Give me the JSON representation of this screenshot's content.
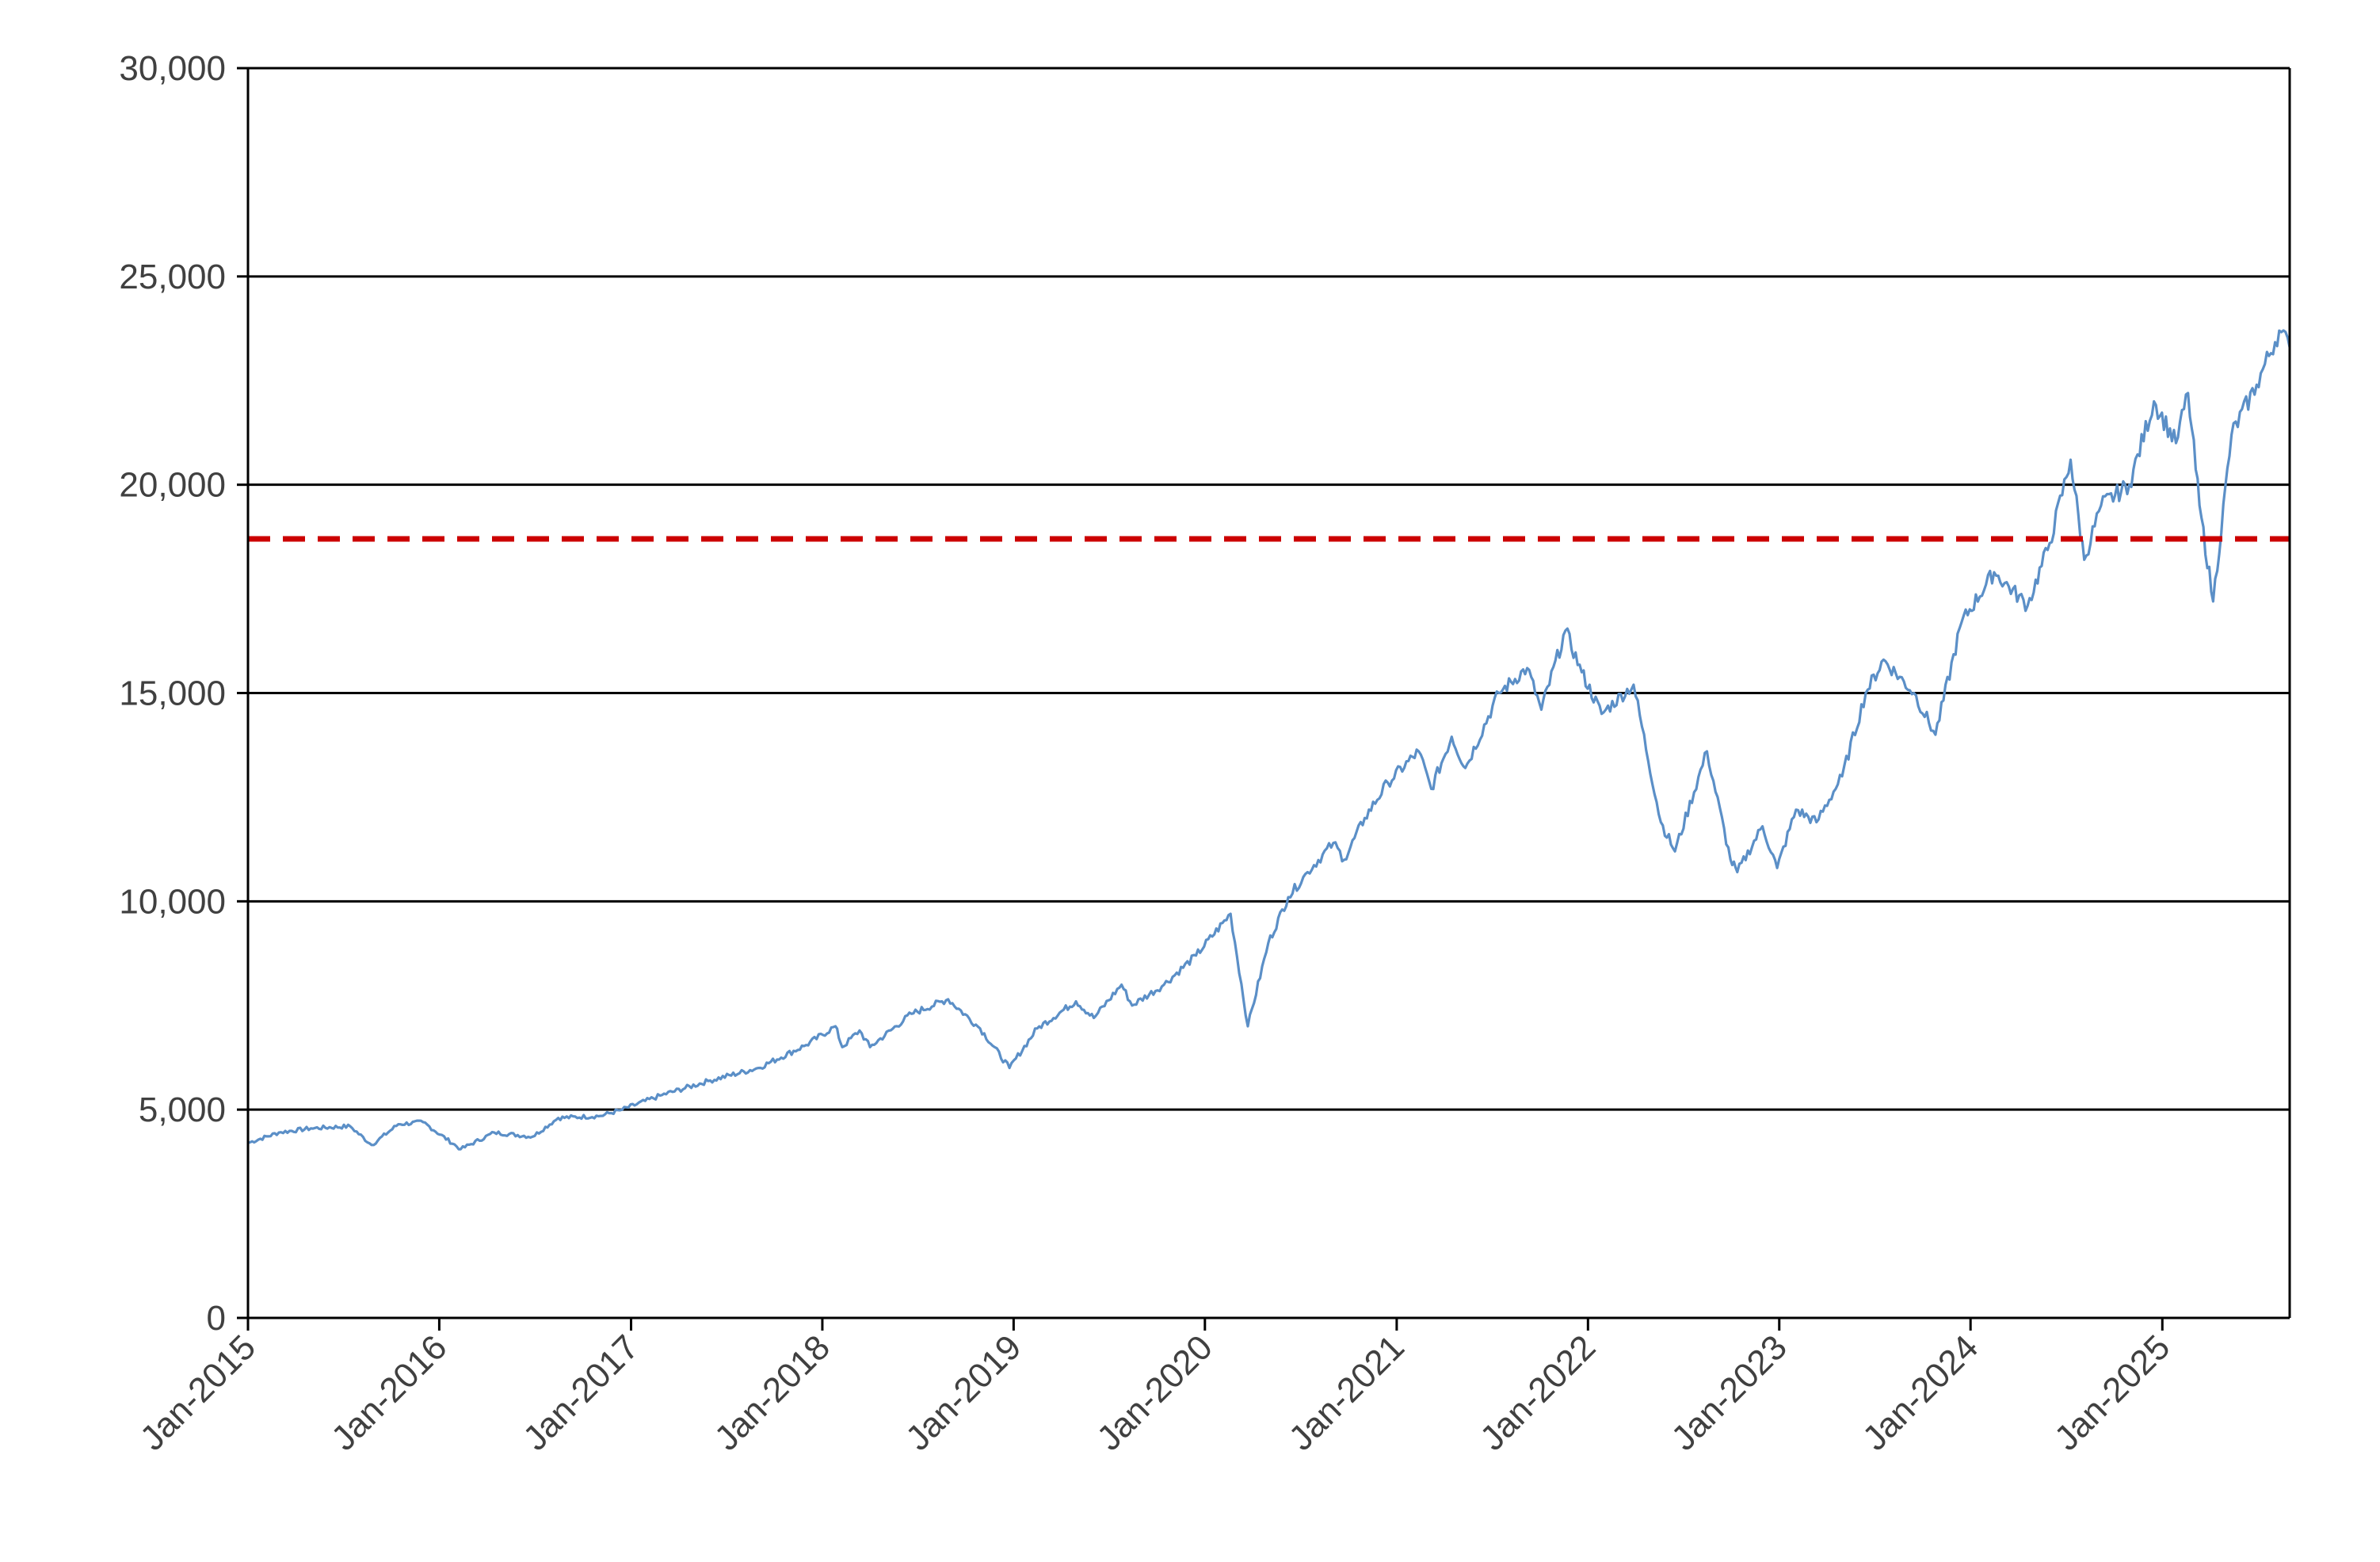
{
  "chart_data": {
    "type": "line",
    "title": "",
    "xlabel": "",
    "ylabel": "",
    "xlim": [
      "2015-01-01",
      "2025-09-01"
    ],
    "ylim": [
      0,
      30000
    ],
    "x_ticks": [
      "Jan-2015",
      "Jan-2016",
      "Jan-2017",
      "Jan-2018",
      "Jan-2019",
      "Jan-2020",
      "Jan-2021",
      "Jan-2022",
      "Jan-2023",
      "Jan-2024",
      "Jan-2025"
    ],
    "x_tick_dates": [
      "2015-01-01",
      "2016-01-01",
      "2017-01-01",
      "2018-01-01",
      "2019-01-01",
      "2020-01-01",
      "2021-01-01",
      "2022-01-01",
      "2023-01-01",
      "2024-01-01",
      "2025-01-01"
    ],
    "y_ticks": [
      0,
      5000,
      10000,
      15000,
      20000,
      25000,
      30000
    ],
    "y_tick_labels": [
      "0",
      "5,000",
      "10,000",
      "15,000",
      "20,000",
      "25,000",
      "30,000"
    ],
    "grid": "horizontal",
    "legend": "none",
    "series": [
      {
        "color": "#5b8fc7",
        "x": [
          "2015-01-01",
          "2015-03-01",
          "2015-05-01",
          "2015-07-15",
          "2015-08-25",
          "2015-10-15",
          "2015-12-01",
          "2016-02-11",
          "2016-04-15",
          "2016-06-27",
          "2016-08-15",
          "2016-11-04",
          "2016-12-15",
          "2017-03-01",
          "2017-06-01",
          "2017-09-01",
          "2017-12-01",
          "2018-01-26",
          "2018-02-08",
          "2018-03-13",
          "2018-04-02",
          "2018-06-20",
          "2018-08-29",
          "2018-10-29",
          "2018-12-24",
          "2019-02-15",
          "2019-04-30",
          "2019-06-03",
          "2019-07-26",
          "2019-08-15",
          "2019-10-15",
          "2019-12-15",
          "2020-02-19",
          "2020-03-23",
          "2020-05-01",
          "2020-06-08",
          "2020-07-15",
          "2020-09-02",
          "2020-09-23",
          "2020-11-01",
          "2020-12-15",
          "2021-02-12",
          "2021-03-08",
          "2021-04-16",
          "2021-05-12",
          "2021-07-15",
          "2021-09-07",
          "2021-10-04",
          "2021-11-19",
          "2021-12-20",
          "2022-01-27",
          "2022-03-29",
          "2022-05-20",
          "2022-06-16",
          "2022-08-16",
          "2022-09-30",
          "2022-10-13",
          "2022-11-30",
          "2022-12-28",
          "2023-02-02",
          "2023-03-13",
          "2023-05-01",
          "2023-06-15",
          "2023-07-19",
          "2023-09-15",
          "2023-10-26",
          "2023-12-15",
          "2024-02-15",
          "2024-04-19",
          "2024-05-31",
          "2024-07-10",
          "2024-08-05",
          "2024-09-06",
          "2024-10-30",
          "2024-12-16",
          "2025-01-27",
          "2025-02-19",
          "2025-03-13",
          "2025-04-08",
          "2025-05-13",
          "2025-06-30",
          "2025-08-12",
          "2025-09-01"
        ],
        "values": [
          4200,
          4450,
          4550,
          4600,
          4150,
          4650,
          4700,
          4050,
          4450,
          4350,
          4800,
          4850,
          5000,
          5350,
          5700,
          6000,
          6550,
          7000,
          6500,
          6900,
          6500,
          7300,
          7650,
          6950,
          6000,
          6950,
          7600,
          7200,
          8000,
          7500,
          8000,
          8700,
          9700,
          7000,
          9000,
          10100,
          10700,
          11400,
          11000,
          12000,
          12850,
          13600,
          12700,
          13950,
          13200,
          15000,
          15600,
          14600,
          16500,
          15500,
          14500,
          15200,
          11900,
          11200,
          13600,
          11000,
          10700,
          11800,
          10800,
          12200,
          11900,
          13000,
          15000,
          15800,
          15000,
          14000,
          16700,
          17900,
          17100,
          18600,
          20600,
          18200,
          19500,
          20000,
          22000,
          21000,
          22200,
          19500,
          17200,
          21200,
          22400,
          23700,
          23300
        ]
      }
    ],
    "annotations": [
      {
        "type": "horizontal_line",
        "value": 18700,
        "color": "#cc0000",
        "style": "dashed"
      }
    ]
  }
}
